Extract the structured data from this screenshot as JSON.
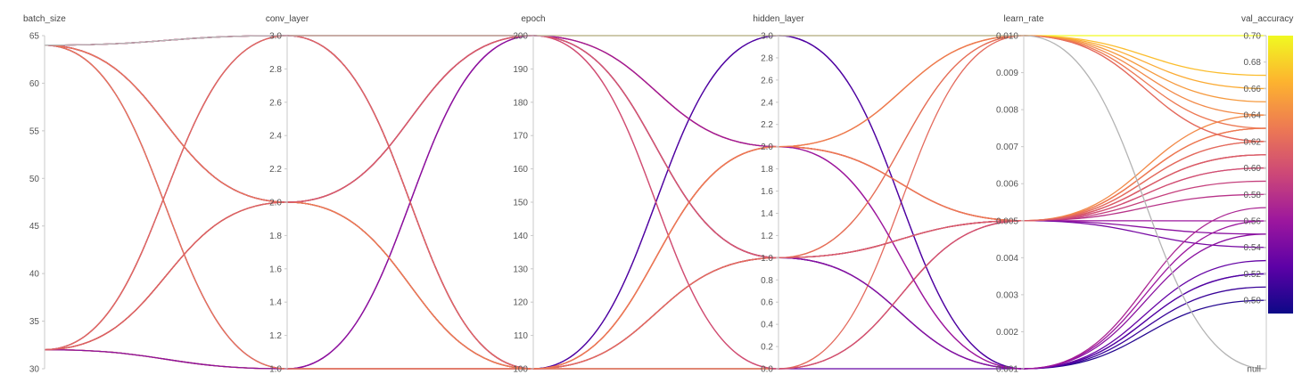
{
  "chart_data": {
    "type": "parallel_coordinates",
    "axes": [
      {
        "key": "batch_size",
        "label": "batch_size",
        "range": [
          30,
          65
        ],
        "ticks": [
          "30",
          "35",
          "40",
          "45",
          "50",
          "55",
          "60",
          "65"
        ]
      },
      {
        "key": "conv_layer",
        "label": "conv_layer",
        "range": [
          1.0,
          3.0
        ],
        "ticks": [
          "1.0",
          "1.2",
          "1.4",
          "1.6",
          "1.8",
          "2.0",
          "2.2",
          "2.4",
          "2.6",
          "2.8",
          "3.0"
        ]
      },
      {
        "key": "epoch",
        "label": "epoch",
        "range": [
          100,
          200
        ],
        "ticks": [
          "100",
          "110",
          "120",
          "130",
          "140",
          "150",
          "160",
          "170",
          "180",
          "190",
          "200"
        ]
      },
      {
        "key": "hidden_layer",
        "label": "hidden_layer",
        "range": [
          0.0,
          3.0
        ],
        "ticks": [
          "0.0",
          "0.2",
          "0.4",
          "0.6",
          "0.8",
          "1.0",
          "1.2",
          "1.4",
          "1.6",
          "1.8",
          "2.0",
          "2.2",
          "2.4",
          "2.6",
          "2.8",
          "3.0"
        ]
      },
      {
        "key": "learn_rate",
        "label": "learn_rate",
        "range": [
          0.001,
          0.01
        ],
        "ticks": [
          "0.001",
          "0.002",
          "0.003",
          "0.004",
          "0.005",
          "0.006",
          "0.007",
          "0.008",
          "0.009",
          "0.010"
        ]
      },
      {
        "key": "val_accuracy",
        "label": "val_accuracy",
        "range": [
          0.49,
          0.7
        ],
        "ticks": [
          "0.50",
          "0.52",
          "0.54",
          "0.56",
          "0.58",
          "0.60",
          "0.62",
          "0.64",
          "0.66",
          "0.68",
          "0.70"
        ],
        "extra_tick": "null"
      }
    ],
    "colorscale": {
      "domain": [
        0.49,
        0.7
      ],
      "colors": [
        "#0d0887",
        "#5c01a6",
        "#9c179e",
        "#cc4778",
        "#ed7953",
        "#fdb32f",
        "#f0f921"
      ]
    },
    "null_color": "#b4b4b4",
    "runs": [
      [
        64,
        3,
        200,
        3,
        0.01,
        0.7
      ],
      [
        64,
        3,
        100,
        2,
        0.005,
        0.62
      ],
      [
        64,
        2,
        200,
        1,
        0.001,
        0.5
      ],
      [
        64,
        2,
        100,
        0,
        0.005,
        0.55
      ],
      [
        64,
        1,
        200,
        2,
        0.005,
        0.58
      ],
      [
        64,
        3,
        100,
        3,
        0.001,
        0.51
      ],
      [
        64,
        2,
        100,
        1,
        0.001,
        0.52
      ],
      [
        32,
        3,
        200,
        2,
        0.01,
        0.64
      ],
      [
        32,
        2,
        200,
        2,
        0.005,
        0.63
      ],
      [
        32,
        1,
        100,
        0,
        0.01,
        0.62
      ],
      [
        32,
        2,
        100,
        1,
        0.01,
        0.66
      ],
      [
        32,
        1,
        100,
        1,
        0.005,
        0.61
      ],
      [
        32,
        2,
        200,
        0,
        0.005,
        0.6
      ],
      [
        32,
        3,
        100,
        2,
        0.005,
        0.63
      ],
      [
        32,
        1,
        200,
        1,
        0.005,
        0.56
      ],
      [
        32,
        2,
        100,
        3,
        0.001,
        0.52
      ],
      [
        64,
        3,
        200,
        2,
        0.005,
        0.61
      ],
      [
        32,
        1,
        100,
        2,
        0.01,
        0.65
      ],
      [
        64,
        2,
        200,
        1,
        0.005,
        0.59
      ],
      [
        32,
        3,
        100,
        1,
        0.005,
        0.54
      ],
      [
        64,
        1,
        100,
        0,
        0.001,
        0.53
      ],
      [
        32,
        2,
        200,
        3,
        0.01,
        0.67
      ],
      [
        64,
        2,
        100,
        1,
        0.005,
        0.62
      ],
      [
        32,
        2,
        100,
        0,
        0.005,
        0.64
      ],
      [
        64,
        3,
        100,
        2,
        0.001,
        0.57
      ],
      [
        32,
        1,
        200,
        1,
        0.001,
        0.55
      ],
      [
        64,
        3,
        200,
        0,
        0.005,
        0.6
      ],
      [
        64,
        1,
        100,
        2,
        0.005,
        0.63
      ],
      [
        64,
        2,
        200,
        2,
        0.001,
        0.56
      ],
      [
        32,
        3,
        100,
        1,
        0.01,
        0.62
      ],
      [
        64,
        2,
        100,
        2,
        0.01,
        0.63
      ],
      [
        32,
        2,
        200,
        1,
        0.005,
        0.61
      ],
      [
        64,
        3,
        200,
        3,
        0.01,
        null
      ]
    ]
  }
}
